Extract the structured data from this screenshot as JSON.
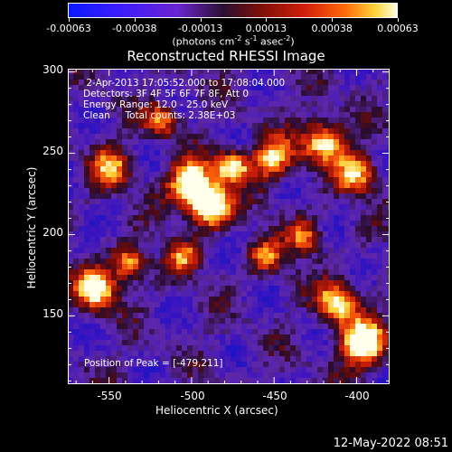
{
  "colorbar": {
    "tick_labels": [
      "-0.00063",
      "-0.00038",
      "-0.00013",
      "0.00013",
      "0.00038",
      "0.00063"
    ],
    "units_text": "(photons cm",
    "units_sup1": "-2",
    "units_mid": " s",
    "units_sup2": "-1",
    "units_mid2": " asec",
    "units_sup3": "-2",
    "units_end": ")"
  },
  "plot": {
    "title": "Reconstructed RHESSI Image",
    "info_lines": [
      " 2-Apr-2013 17:05:52.000 to 17:08:04.000",
      "Detectors: 3F 4F 5F 6F 7F 8F, Att 0",
      "Energy Range: 12.0 - 25.0 keV",
      "Clean     Total counts: 2.38E+03"
    ],
    "peak_text": "Position of Peak = [-479,211]",
    "xlabel": "Heliocentric X (arcsec)",
    "ylabel": "Heliocentric Y (arcsec)",
    "x_ticks": [
      "-550",
      "-500",
      "-450",
      "-400"
    ],
    "y_ticks": [
      "300",
      "250",
      "200",
      "150"
    ],
    "xlim": [
      -575,
      -380
    ],
    "ylim": [
      108,
      302
    ],
    "peak": [
      -479,
      211
    ]
  },
  "timestamp": "12-May-2022 08:51"
}
